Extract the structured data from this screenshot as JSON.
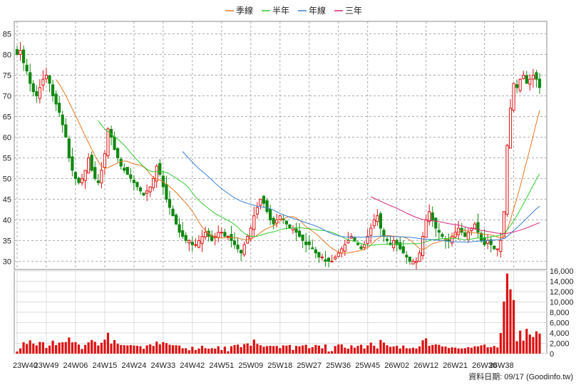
{
  "chart_data": {
    "type": "candlestick_with_volume",
    "legend": [
      {
        "name": "季線",
        "color": "#e87722"
      },
      {
        "name": "半年",
        "color": "#2ecc2e"
      },
      {
        "name": "年線",
        "color": "#3a7fd5"
      },
      {
        "name": "三年",
        "color": "#d6247a"
      }
    ],
    "price_axis": {
      "ylim": [
        28,
        88
      ],
      "ticks": [
        30,
        35,
        40,
        45,
        50,
        55,
        60,
        65,
        70,
        75,
        80,
        85
      ]
    },
    "volume_axis": {
      "ylim": [
        0,
        16000
      ],
      "ticks": [
        0,
        2000,
        4000,
        6000,
        8000,
        10000,
        12000,
        14000,
        16000
      ],
      "tick_labels": [
        "0",
        "2,000",
        "4,000",
        "6,000",
        "8,000",
        "10,000",
        "12,000",
        "14,000",
        "16,000"
      ]
    },
    "x_labels": [
      "23W40",
      "23W49",
      "24W06",
      "24W15",
      "24W24",
      "24W33",
      "24W42",
      "24W51",
      "25W09",
      "25W18",
      "25W27",
      "25W36",
      "25W45",
      "26W02",
      "26W12",
      "26W21",
      "26W30",
      "26W38"
    ],
    "candles_per_label": 9,
    "up_color": "#dd1111",
    "down_color": "#118811",
    "close": [
      80,
      81,
      78,
      76,
      73,
      71,
      70,
      72,
      74,
      75,
      73,
      70,
      68,
      66,
      63,
      60,
      55,
      52,
      50,
      49,
      50,
      52,
      55,
      52,
      50,
      49,
      52,
      56,
      62,
      60,
      57,
      55,
      53,
      52,
      51,
      50,
      49,
      48,
      47,
      46,
      47,
      48,
      50,
      53,
      51,
      48,
      45,
      43,
      41,
      39,
      37,
      36,
      35,
      35,
      34,
      34,
      35,
      36,
      37,
      36,
      35,
      36,
      37,
      37,
      36,
      36,
      35,
      34,
      33,
      32,
      34,
      36,
      38,
      41,
      43,
      45,
      44,
      42,
      40,
      39,
      40,
      41,
      40,
      39,
      38,
      38,
      37,
      36,
      35,
      34,
      34,
      33,
      32,
      31,
      31,
      30,
      30,
      30,
      31,
      32,
      33,
      34,
      35,
      36,
      35,
      34,
      33,
      34,
      36,
      38,
      40,
      41,
      38,
      36,
      35,
      34,
      35,
      34,
      33,
      32,
      31,
      30,
      30,
      30,
      32,
      36,
      40,
      42,
      40,
      38,
      37,
      36,
      35,
      35,
      36,
      37,
      38,
      37,
      36,
      37,
      38,
      39,
      37,
      35,
      34,
      35,
      34,
      33,
      33,
      35,
      42,
      58,
      67,
      73,
      72,
      74,
      75,
      73,
      74,
      75,
      74,
      72
    ]
  },
  "source": "資料日期: 09/17 (Goodinfo.tw)"
}
